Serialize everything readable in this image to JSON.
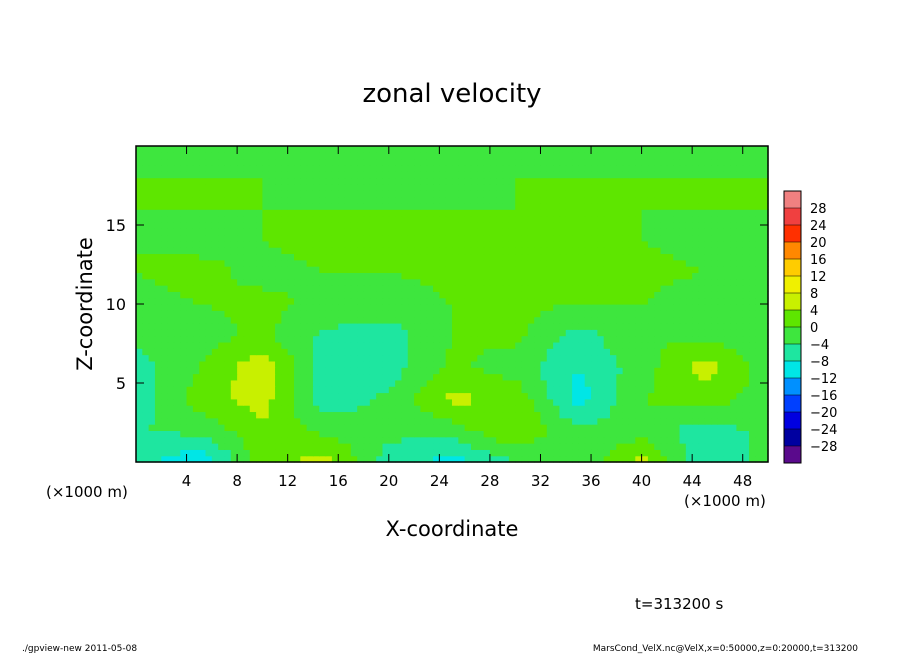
{
  "chart_data": {
    "type": "heatmap",
    "title": "zonal velocity",
    "xlabel": "X-coordinate",
    "ylabel": "Z-coordinate",
    "x_unit_left": "(×1000 m)",
    "x_unit_right": "(×1000 m)",
    "xlim": [
      0,
      50
    ],
    "ylim": [
      0,
      20
    ],
    "xticks": [
      4,
      8,
      12,
      16,
      20,
      24,
      28,
      32,
      36,
      40,
      44,
      48
    ],
    "yticks": [
      5,
      10,
      15
    ],
    "colorbar": {
      "levels": [
        28,
        24,
        20,
        16,
        12,
        8,
        4,
        0,
        -4,
        -8,
        -12,
        -16,
        -20,
        -24,
        -28
      ],
      "labels": [
        "28",
        "24",
        "20",
        "16",
        "12",
        "8",
        "4",
        "0",
        "−4",
        "−8",
        "−12",
        "−16",
        "−20",
        "−24",
        "−28"
      ],
      "colors": [
        "#f08080",
        "#f04040",
        "#ff3000",
        "#ff8800",
        "#ffcc00",
        "#f0f000",
        "#c8f000",
        "#5ee600",
        "#3ee63e",
        "#1ee6a0",
        "#00e6e6",
        "#0090ff",
        "#0040ff",
        "#0000e0",
        "#0000a0",
        "#5a0a8c"
      ]
    },
    "field": {
      "x": [
        0,
        5,
        10,
        15,
        20,
        25,
        30,
        35,
        40,
        45,
        50
      ],
      "z": [
        0,
        2,
        4,
        6,
        8,
        10,
        12,
        14,
        16,
        18,
        20
      ],
      "values": [
        [
          -6,
          -12,
          2,
          6,
          -6,
          -10,
          -4,
          -4,
          6,
          -8,
          -2
        ],
        [
          -4,
          -3,
          3,
          -1,
          -3,
          -2,
          4,
          -3,
          -2,
          -6,
          -3
        ],
        [
          -7,
          2,
          6,
          -7,
          -3,
          5,
          3,
          -10,
          0,
          2,
          -2
        ],
        [
          -6,
          0,
          7,
          -6,
          -6,
          1,
          -2,
          -8,
          -2,
          6,
          -2
        ],
        [
          -3,
          -2,
          1,
          -5,
          -6,
          0,
          1,
          -6,
          0,
          -1,
          -3
        ],
        [
          -1,
          0,
          1,
          -1,
          -2,
          0,
          1,
          0,
          0,
          -2,
          -1
        ],
        [
          0,
          1,
          -1,
          0,
          0,
          1,
          0,
          0,
          1,
          0,
          0
        ],
        [
          0,
          -1,
          0,
          1,
          0,
          0,
          1,
          0,
          0,
          -1,
          0
        ],
        [
          0,
          0,
          0,
          0,
          0,
          0,
          0,
          0,
          0,
          0,
          0
        ],
        [
          0,
          0,
          0,
          -1,
          0,
          -1,
          0,
          0,
          0,
          0,
          0
        ],
        [
          -2,
          -2,
          -3,
          -3,
          -4,
          -4,
          -3,
          -3,
          -2,
          -2,
          -2
        ]
      ]
    }
  },
  "time_label": "t=313200 s",
  "footer_left": "./gpview-new   2011-05-08",
  "footer_right": "MarsCond_VelX.nc@VelX,x=0:50000,z=0:20000,t=313200"
}
